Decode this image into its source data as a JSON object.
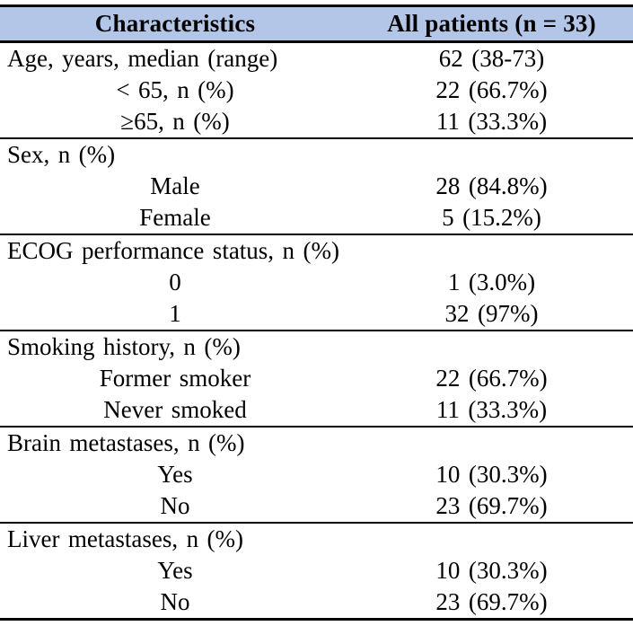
{
  "table": {
    "columns": {
      "characteristics": "Characteristics",
      "all_patients": "All patients (n = 33)"
    },
    "colors": {
      "header_bg": "#b4c6e7",
      "border": "#000000",
      "text": "#000000"
    },
    "sections": [
      {
        "header": {
          "label": "Age, years, median (range)",
          "value": "62 (38-73)"
        },
        "items": [
          {
            "label": "< 65, n (%)",
            "value": "22 (66.7%)"
          },
          {
            "label": "≥65, n (%)",
            "value": "11 (33.3%)"
          }
        ]
      },
      {
        "header": {
          "label": "Sex, n (%)",
          "value": ""
        },
        "items": [
          {
            "label": "Male",
            "value": "28 (84.8%)"
          },
          {
            "label": "Female",
            "value": "5 (15.2%)"
          }
        ]
      },
      {
        "header": {
          "label": "ECOG performance status, n (%)",
          "value": ""
        },
        "items": [
          {
            "label": "0",
            "value": "1 (3.0%)"
          },
          {
            "label": "1",
            "value": "32 (97%)"
          }
        ]
      },
      {
        "header": {
          "label": "Smoking history, n (%)",
          "value": ""
        },
        "items": [
          {
            "label": "Former smoker",
            "value": "22 (66.7%)"
          },
          {
            "label": "Never smoked",
            "value": "11 (33.3%)"
          }
        ]
      },
      {
        "header": {
          "label": "Brain metastases, n (%)",
          "value": ""
        },
        "items": [
          {
            "label": "Yes",
            "value": "10 (30.3%)"
          },
          {
            "label": "No",
            "value": "23 (69.7%)"
          }
        ]
      },
      {
        "header": {
          "label": "Liver metastases, n (%)",
          "value": ""
        },
        "items": [
          {
            "label": "Yes",
            "value": "10 (30.3%)"
          },
          {
            "label": "No",
            "value": "23 (69.7%)"
          }
        ]
      }
    ]
  }
}
